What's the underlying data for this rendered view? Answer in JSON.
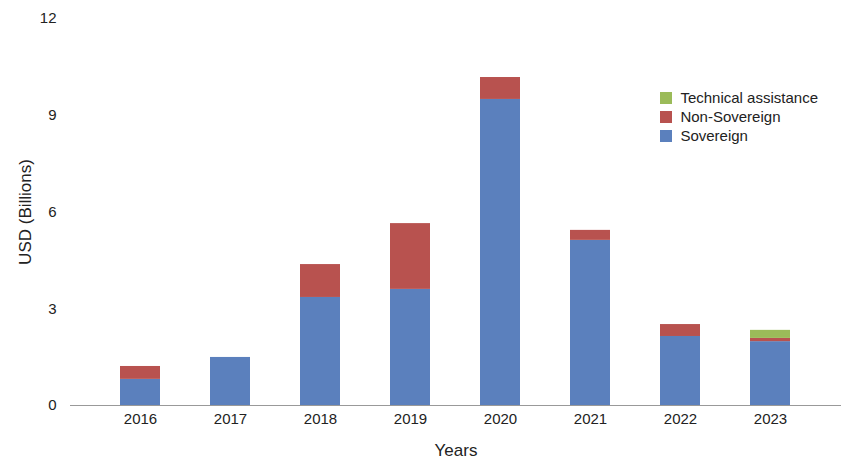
{
  "chart_data": {
    "type": "bar",
    "stacked": true,
    "categories": [
      "2016",
      "2017",
      "2018",
      "2019",
      "2020",
      "2021",
      "2022",
      "2023"
    ],
    "series": [
      {
        "name": "Sovereign",
        "color": "#5b80bd",
        "values": [
          0.81,
          1.49,
          3.35,
          3.6,
          9.49,
          5.12,
          2.14,
          1.98
        ]
      },
      {
        "name": "Non-Sovereign",
        "color": "#b8524f",
        "values": [
          0.4,
          0,
          1.02,
          2.04,
          0.68,
          0.31,
          0.37,
          0.1
        ]
      },
      {
        "name": "Technical assistance",
        "color": "#9bbb59",
        "values": [
          0,
          0,
          0,
          0,
          0,
          0,
          0,
          0.25
        ]
      }
    ],
    "x_label": "Years",
    "y_label": "USD (Billions)",
    "ylim": [
      0,
      12
    ],
    "yticks": [
      0,
      3,
      6,
      9,
      12
    ],
    "grid": false,
    "legend": "top-right"
  }
}
